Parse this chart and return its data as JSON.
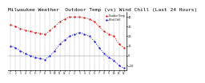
{
  "title": "Milwaukee Weather  Outdoor Temp (vs) Wind Chill (Last 24 Hours)",
  "title_fontsize": 4.5,
  "background_color": "#ffffff",
  "red_label": "Outdoor Temp",
  "blue_label": "Wind Chill",
  "red_color": "#dd0000",
  "blue_color": "#0000dd",
  "ylim": [
    -15,
    45
  ],
  "yticks": [
    -10,
    0,
    10,
    20,
    30,
    40
  ],
  "red_y": [
    32,
    30,
    28,
    26,
    25,
    24,
    23,
    22,
    26,
    30,
    35,
    38,
    40,
    40,
    40,
    39,
    38,
    35,
    30,
    25,
    22,
    20,
    12,
    8
  ],
  "blue_y": [
    10,
    8,
    5,
    2,
    0,
    -2,
    -3,
    -4,
    0,
    5,
    12,
    16,
    20,
    22,
    24,
    22,
    20,
    15,
    8,
    2,
    -2,
    -5,
    -10,
    -13
  ],
  "xtick_labels": [
    "1",
    "2",
    "3",
    "4",
    "5",
    "6",
    "7",
    "8",
    "9",
    "10",
    "11",
    "12",
    "1",
    "2",
    "3",
    "4",
    "5",
    "6",
    "7",
    "8",
    "9",
    "10",
    "11",
    "12"
  ],
  "num_points": 24
}
